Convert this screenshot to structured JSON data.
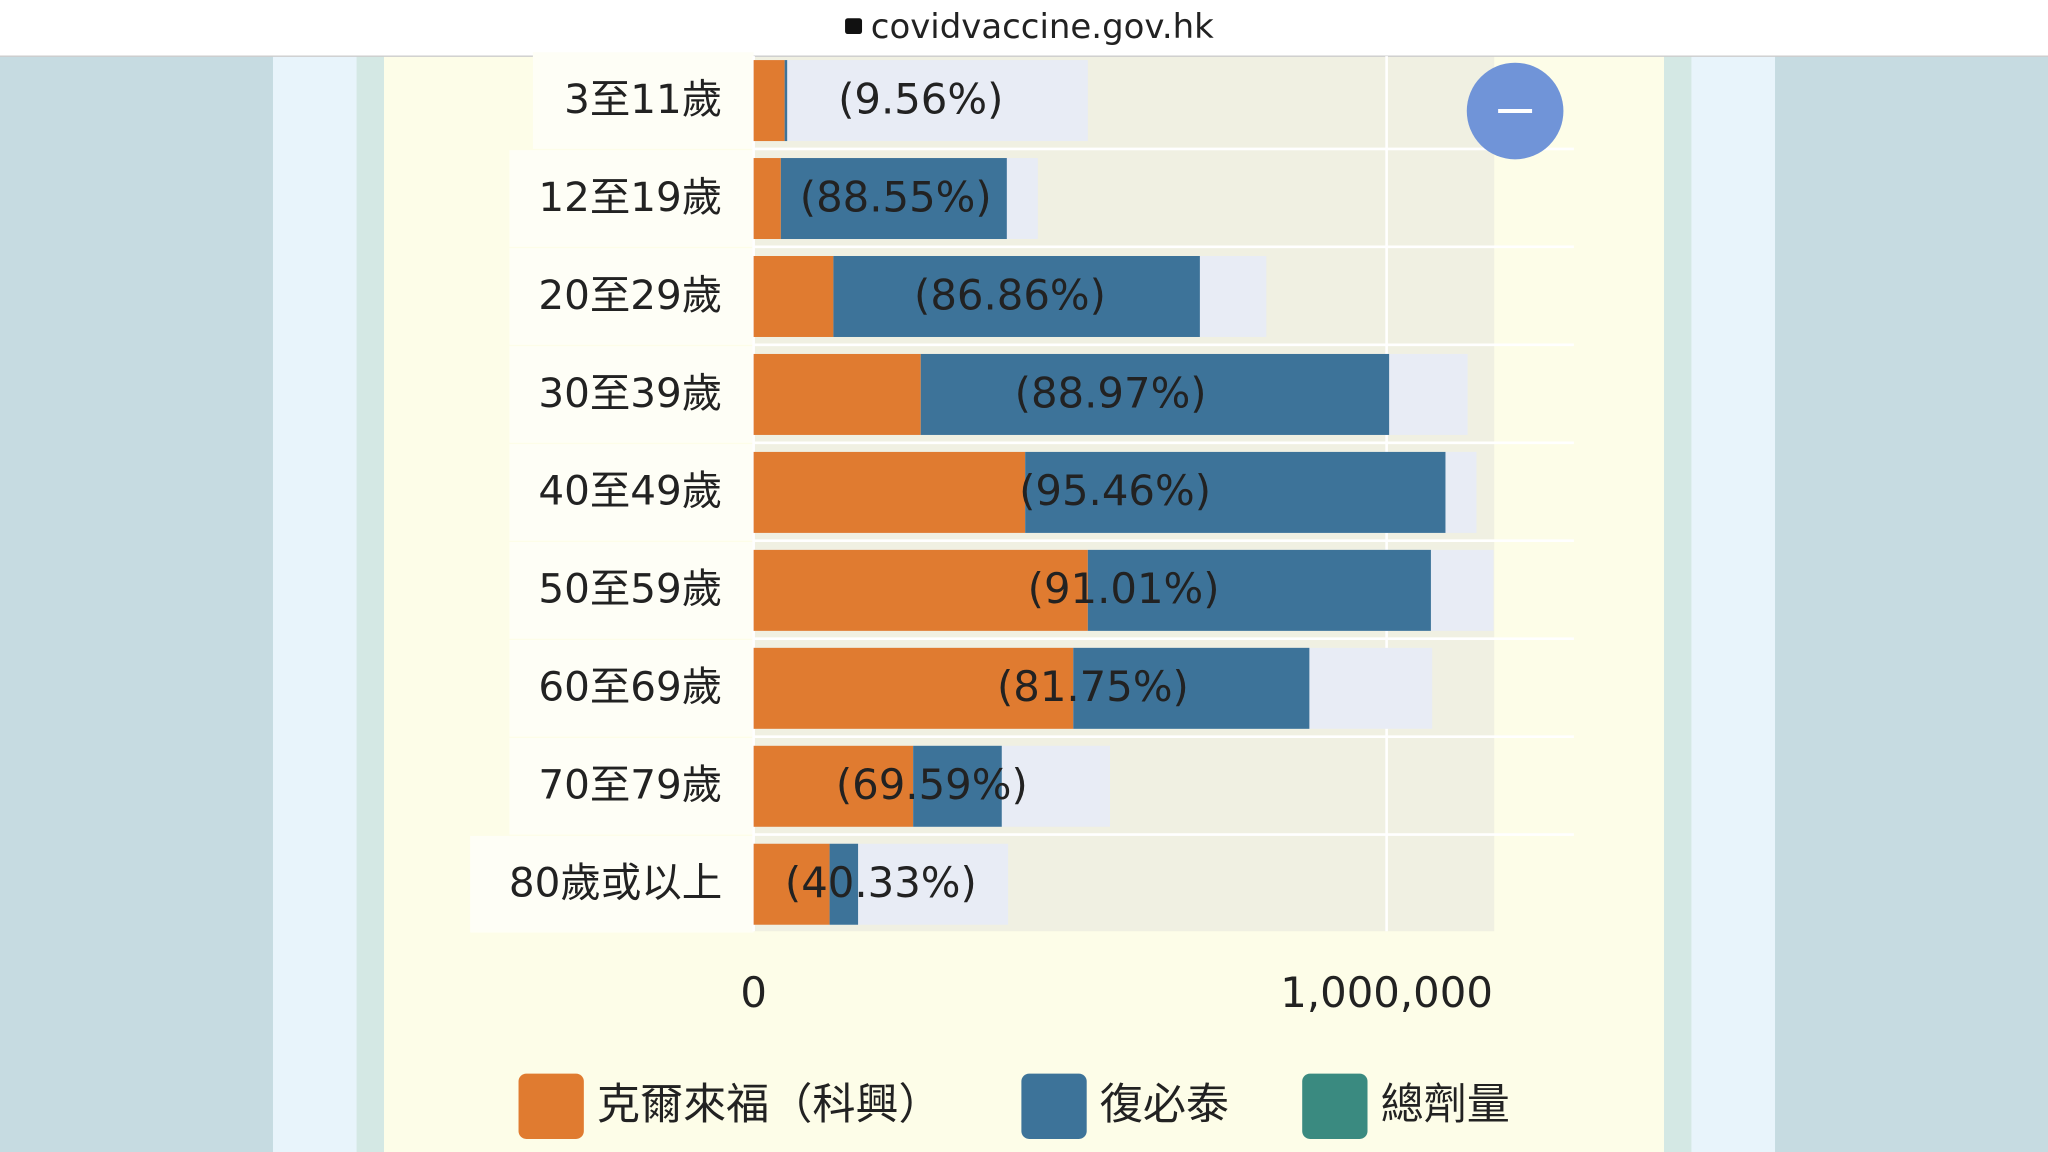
{
  "url": "covidvaccine.gov.hk",
  "chart_data": {
    "type": "bar",
    "orientation": "horizontal",
    "stacked": true,
    "categories": [
      "3至11歲",
      "12至19歲",
      "20至29歲",
      "30至39歲",
      "40至49歲",
      "50至59歲",
      "60至69歲",
      "70至79歲",
      "80歲或以上"
    ],
    "series": [
      {
        "name": "克爾來福（科興）",
        "color": "#e07b30",
        "values": [
          49000,
          43000,
          126000,
          264000,
          429000,
          528000,
          505000,
          252000,
          120000
        ]
      },
      {
        "name": "復必泰",
        "color": "#3d7399",
        "values": [
          4000,
          357000,
          579000,
          740000,
          664000,
          542000,
          373000,
          140000,
          45000
        ]
      },
      {
        "name": "總劑量",
        "color": "#3a8a80",
        "values": [
          null,
          null,
          null,
          null,
          null,
          null,
          null,
          null,
          null
        ]
      }
    ],
    "reference_values": [
      528000,
      449000,
      810000,
      1128000,
      1142000,
      1169000,
      1072000,
      563000,
      402000
    ],
    "reference_color": "#e8ecf5",
    "annotations": [
      "(9.56%)",
      "(88.55%)",
      "(86.86%)",
      "(88.97%)",
      "(95.46%)",
      "(91.01%)",
      "(81.75%)",
      "(69.59%)",
      "(40.33%)"
    ],
    "xlim": [
      0,
      1170000
    ],
    "xticks": [
      0,
      {
        "value": 1000000,
        "label": "1,000,000"
      }
    ],
    "grid": true
  }
}
